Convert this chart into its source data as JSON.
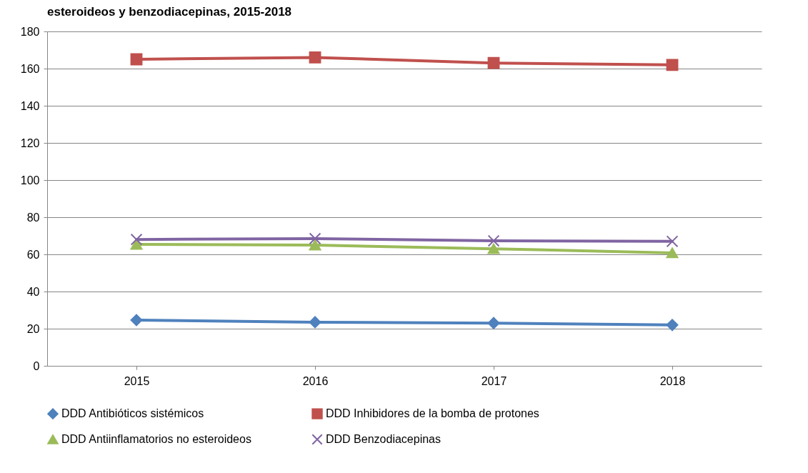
{
  "chart_data": {
    "type": "line",
    "title": "esteroideos y benzodiacepinas, 2015-2018",
    "categories": [
      "2015",
      "2016",
      "2017",
      "2018"
    ],
    "series": [
      {
        "name": "DDD Antibióticos sistémicos",
        "color": "#4f81bd",
        "marker": "diamond",
        "values": [
          24.6,
          23.5,
          23,
          22
        ]
      },
      {
        "name": "DDD Inhibidores de la bomba de protones",
        "color": "#c0504d",
        "marker": "square",
        "values": [
          165,
          166,
          163,
          162
        ]
      },
      {
        "name": "DDD Antiinflamatorios no esteroideos",
        "color": "#9bbb59",
        "marker": "triangle",
        "values": [
          65.4,
          65,
          63,
          60.8
        ]
      },
      {
        "name": "DDD Benzodiacepinas",
        "color": "#8064a2",
        "marker": "cross",
        "values": [
          68,
          68.5,
          67.3,
          67
        ]
      }
    ],
    "ylim": [
      0,
      180
    ],
    "yticks": [
      0,
      20,
      40,
      60,
      80,
      100,
      120,
      140,
      160,
      180
    ],
    "grid": "y",
    "legend": "bottom",
    "line_style": "solid"
  }
}
